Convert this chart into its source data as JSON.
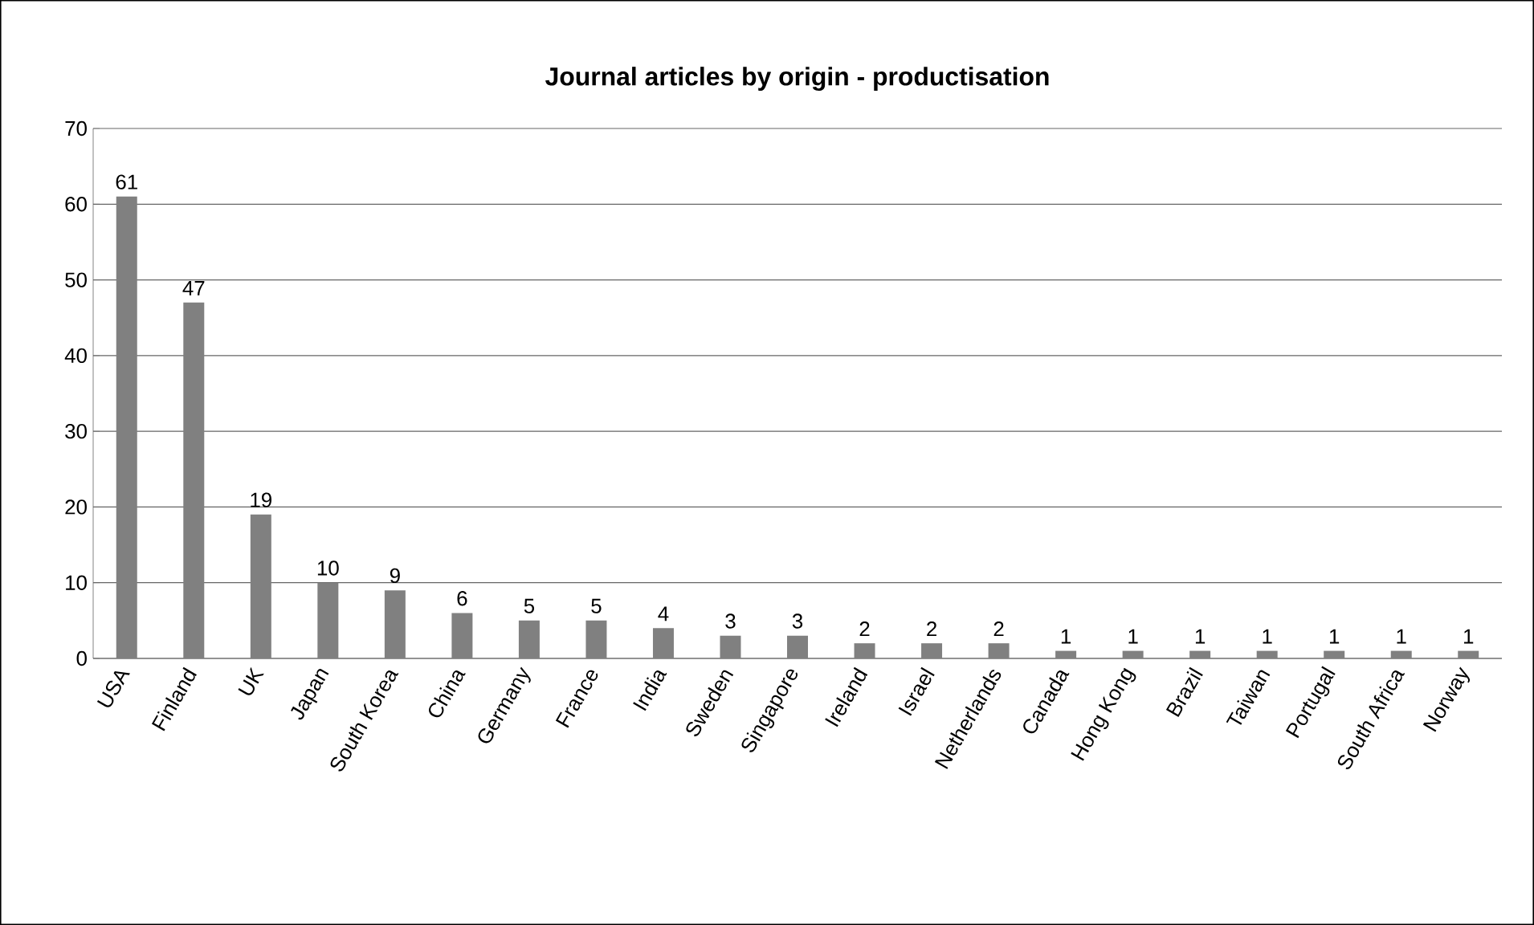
{
  "chart_data": {
    "type": "bar",
    "title": "Journal articles by origin - productisation",
    "categories": [
      "USA",
      "Finland",
      "UK",
      "Japan",
      "South Korea",
      "China",
      "Germany",
      "France",
      "India",
      "Sweden",
      "Singapore",
      "Ireland",
      "Israel",
      "Netherlands",
      "Canada",
      "Hong Kong",
      "Brazil",
      "Taiwan",
      "Portugal",
      "South Africa",
      "Norway"
    ],
    "values": [
      61,
      47,
      19,
      10,
      9,
      6,
      5,
      5,
      4,
      3,
      3,
      2,
      2,
      2,
      1,
      1,
      1,
      1,
      1,
      1,
      1
    ],
    "color": "#808080",
    "ylim": [
      0,
      70
    ],
    "yticks": [
      0,
      10,
      20,
      30,
      40,
      50,
      60,
      70
    ],
    "grid": "y",
    "data_labels": true
  }
}
